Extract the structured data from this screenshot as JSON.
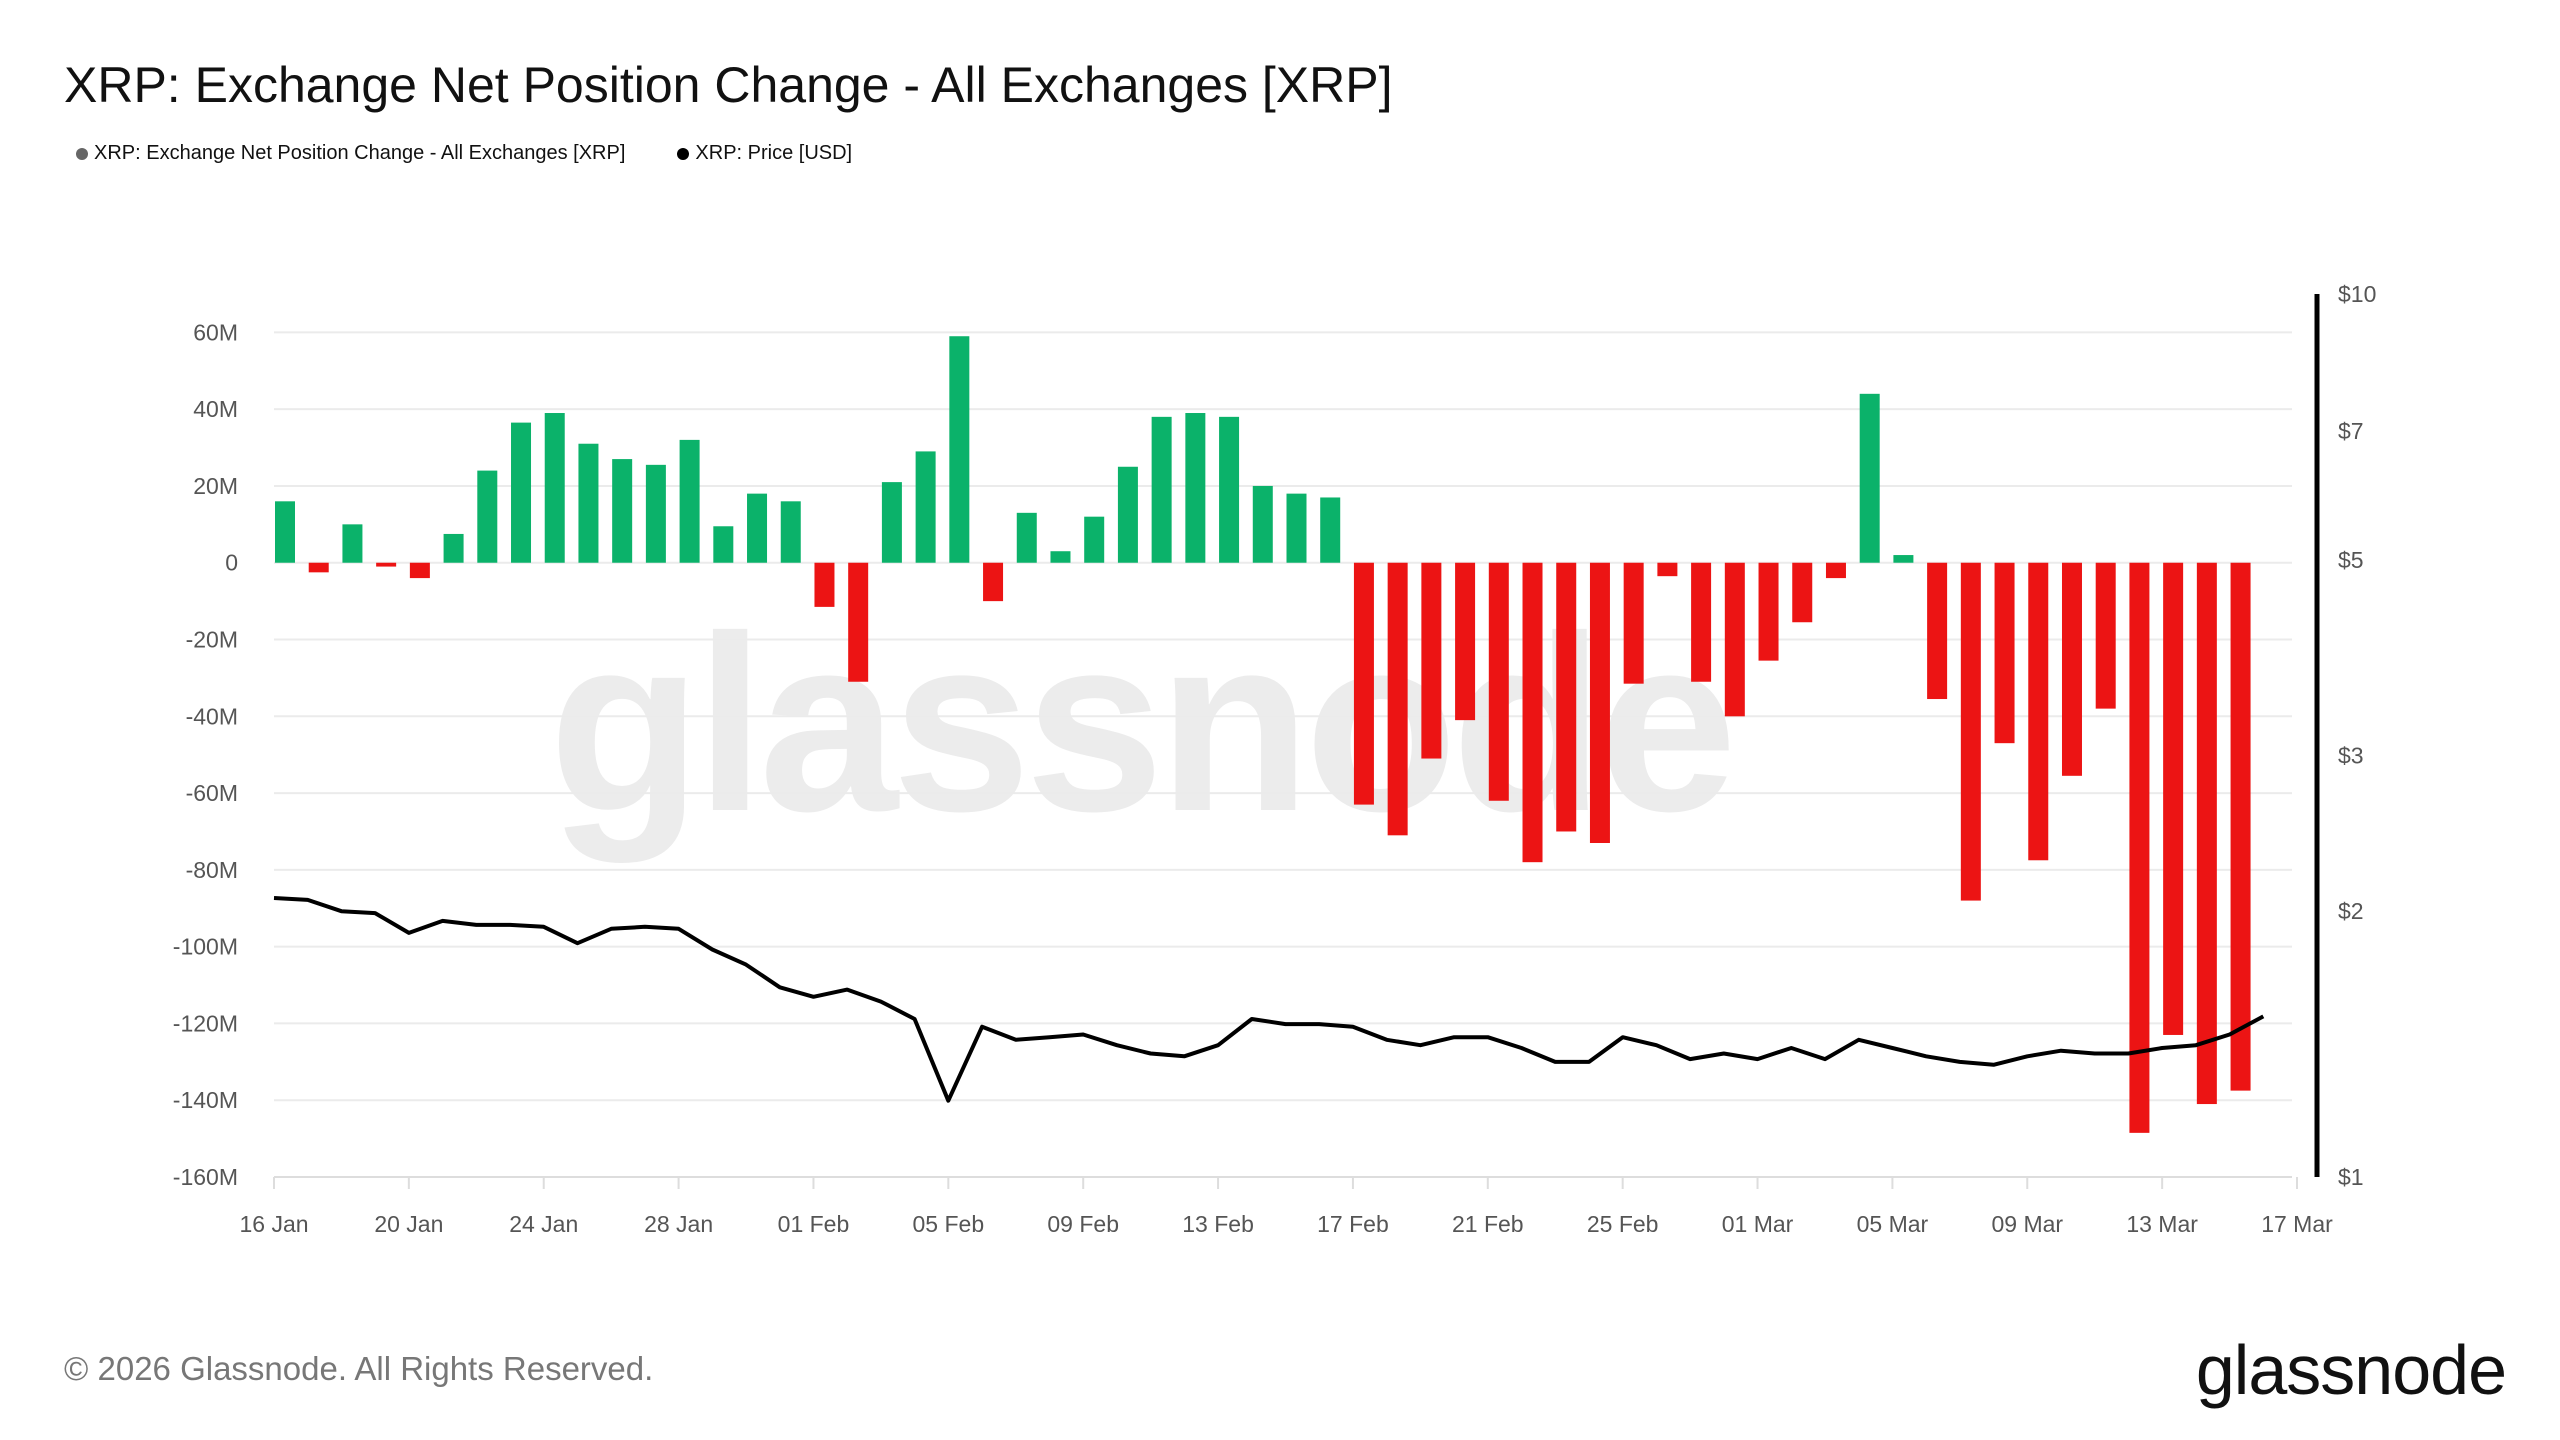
{
  "title": "XRP: Exchange Net Position Change - All Exchanges [XRP]",
  "legend": [
    {
      "label": "XRP: Exchange Net Position Change - All Exchanges [XRP]",
      "color": "#666666"
    },
    {
      "label": "XRP: Price [USD]",
      "color": "#000000"
    }
  ],
  "footer": "© 2026 Glassnode. All Rights Reserved.",
  "logo": "glassnode",
  "watermark": "glassnode",
  "chart_data": {
    "type": "bar+line",
    "title": "XRP: Exchange Net Position Change - All Exchanges [XRP]",
    "x_start": "2026-01-16",
    "x_tick_labels": [
      "16 Jan",
      "20 Jan",
      "24 Jan",
      "28 Jan",
      "01 Feb",
      "05 Feb",
      "09 Feb",
      "13 Feb",
      "17 Feb",
      "21 Feb",
      "25 Feb",
      "01 Mar",
      "05 Mar",
      "09 Mar",
      "13 Mar",
      "17 Mar"
    ],
    "left_axis": {
      "ylim": [
        -160,
        70
      ],
      "unit": "M",
      "tick_labels": [
        "60M",
        "40M",
        "20M",
        "0",
        "-20M",
        "-40M",
        "-60M",
        "-80M",
        "-100M",
        "-120M",
        "-140M",
        "-160M"
      ],
      "ticks": [
        60,
        40,
        20,
        0,
        -20,
        -40,
        -60,
        -80,
        -100,
        -120,
        -140,
        -160
      ]
    },
    "right_axis": {
      "scale": "log",
      "ylim": [
        1,
        10
      ],
      "tick_labels": [
        "$10",
        "$7",
        "$5",
        "$3",
        "$2",
        "$1"
      ],
      "ticks": [
        10,
        7,
        5,
        3,
        2,
        1
      ]
    },
    "grid": true,
    "positive_color": "#0bb26a",
    "negative_color": "#ec1414",
    "series": [
      {
        "name": "XRP: Exchange Net Position Change - All Exchanges [XRP]",
        "type": "bar",
        "unit": "M XRP",
        "dates": [
          "16 Jan",
          "17 Jan",
          "18 Jan",
          "19 Jan",
          "20 Jan",
          "21 Jan",
          "22 Jan",
          "23 Jan",
          "24 Jan",
          "25 Jan",
          "26 Jan",
          "27 Jan",
          "28 Jan",
          "29 Jan",
          "30 Jan",
          "31 Jan",
          "01 Feb",
          "02 Feb",
          "03 Feb",
          "04 Feb",
          "05 Feb",
          "06 Feb",
          "07 Feb",
          "08 Feb",
          "09 Feb",
          "10 Feb",
          "11 Feb",
          "12 Feb",
          "13 Feb",
          "14 Feb",
          "15 Feb",
          "16 Feb",
          "17 Feb",
          "18 Feb",
          "19 Feb",
          "20 Feb",
          "21 Feb",
          "22 Feb",
          "23 Feb",
          "24 Feb",
          "25 Feb",
          "26 Feb",
          "27 Feb",
          "28 Feb",
          "01 Mar",
          "02 Mar",
          "03 Mar",
          "04 Mar",
          "05 Mar",
          "06 Mar",
          "07 Mar",
          "08 Mar",
          "09 Mar",
          "10 Mar",
          "11 Mar",
          "12 Mar",
          "13 Mar",
          "14 Mar",
          "15 Mar"
        ],
        "values": [
          16,
          -2.5,
          10,
          -1,
          -4,
          7.5,
          24,
          36.5,
          39,
          31,
          27,
          25.5,
          32,
          9.5,
          18,
          16,
          -11.5,
          -31,
          21,
          29,
          59,
          -10,
          13,
          3,
          12,
          25,
          38,
          39,
          38,
          20,
          18,
          17,
          -63,
          -71,
          -51,
          -41,
          -62,
          -78,
          -70,
          -73,
          -31.5,
          -3.5,
          -31,
          -40,
          -25.5,
          -15.5,
          -4,
          44,
          2,
          -35.5,
          -88,
          -47,
          -77.5,
          -55.5,
          -38,
          -148.5,
          -123,
          -141,
          -137.5
        ]
      },
      {
        "name": "XRP: Price [USD]",
        "type": "line",
        "color": "#000000",
        "values": [
          2.07,
          2.06,
          2.0,
          1.99,
          1.89,
          1.95,
          1.93,
          1.93,
          1.92,
          1.84,
          1.91,
          1.92,
          1.91,
          1.81,
          1.74,
          1.64,
          1.6,
          1.63,
          1.58,
          1.51,
          1.22,
          1.48,
          1.43,
          1.44,
          1.45,
          1.41,
          1.38,
          1.37,
          1.41,
          1.51,
          1.49,
          1.49,
          1.48,
          1.43,
          1.41,
          1.44,
          1.44,
          1.4,
          1.35,
          1.35,
          1.44,
          1.41,
          1.36,
          1.38,
          1.36,
          1.4,
          1.36,
          1.43,
          1.4,
          1.37,
          1.35,
          1.34,
          1.37,
          1.39,
          1.38,
          1.38,
          1.4,
          1.41,
          1.45,
          1.52
        ]
      }
    ]
  }
}
